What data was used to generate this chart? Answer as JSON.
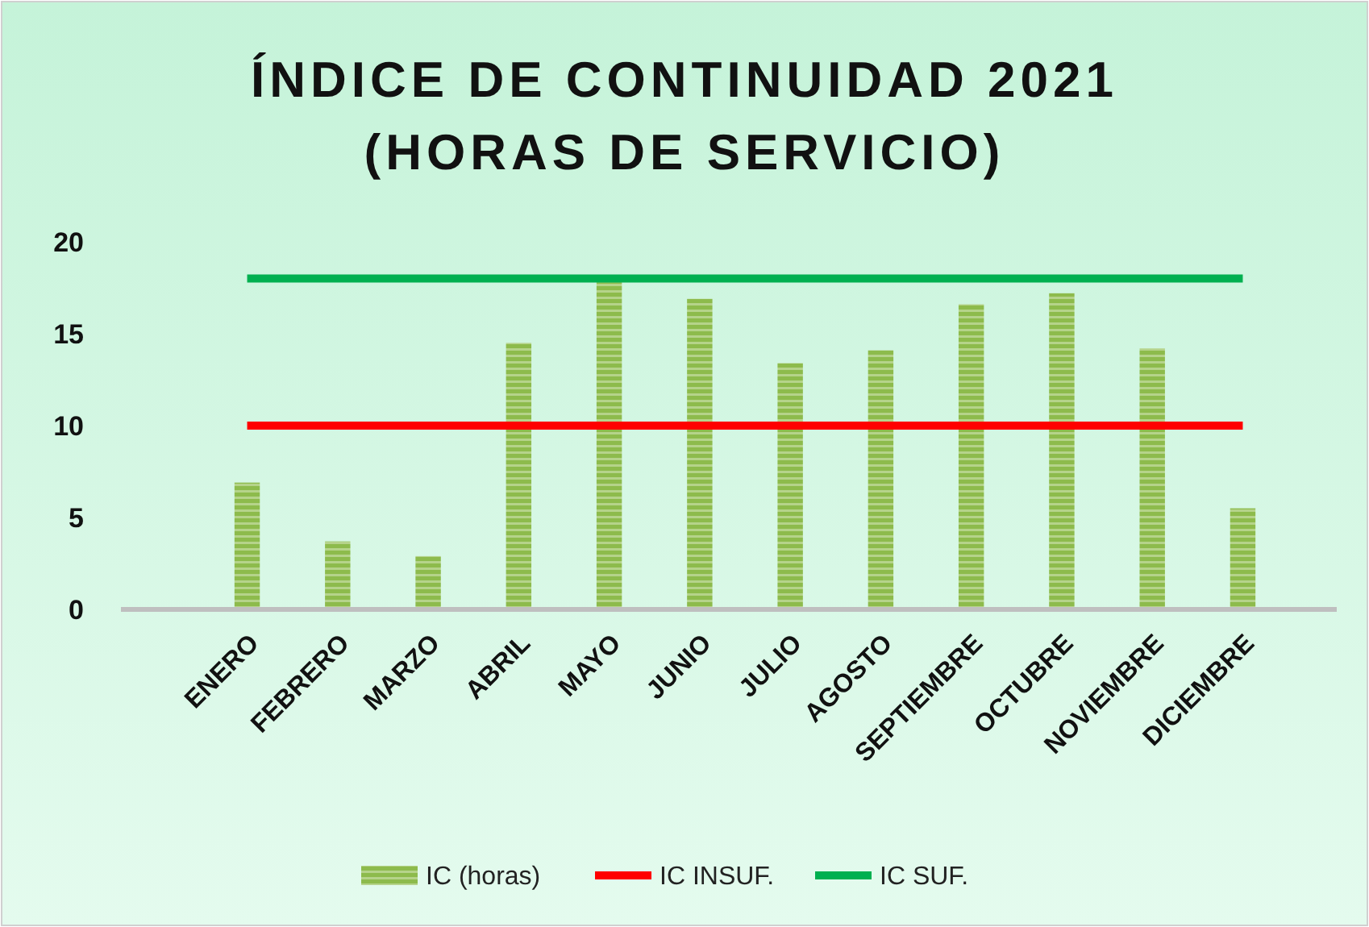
{
  "chart_data": {
    "type": "bar",
    "title": "ÍNDICE DE CONTINUIDAD 2021\n(HORAS DE SERVICIO)",
    "categories": [
      "ENERO",
      "FEBRERO",
      "MARZO",
      "ABRIL",
      "MAYO",
      "JUNIO",
      "JULIO",
      "AGOSTO",
      "SEPTIEMBRE",
      "OCTUBRE",
      "NOVIEMBRE",
      "DICIEMBRE"
    ],
    "series": [
      {
        "name": "IC (horas)",
        "color": "#8dbb4c",
        "values": [
          6.9,
          3.7,
          2.9,
          14.5,
          17.8,
          16.9,
          13.4,
          14.1,
          16.6,
          17.2,
          14.2,
          5.5
        ]
      },
      {
        "name": "IC INSUF.",
        "type": "line",
        "color": "#ff0000",
        "values": [
          10,
          10,
          10,
          10,
          10,
          10,
          10,
          10,
          10,
          10,
          10,
          10
        ]
      },
      {
        "name": "IC SUF.",
        "type": "line",
        "color": "#00b050",
        "values": [
          18,
          18,
          18,
          18,
          18,
          18,
          18,
          18,
          18,
          18,
          18,
          18
        ]
      }
    ],
    "ylim": [
      0,
      20
    ],
    "yticks": [
      0,
      5,
      10,
      15,
      20
    ],
    "grid": false,
    "legend": "bottom"
  }
}
